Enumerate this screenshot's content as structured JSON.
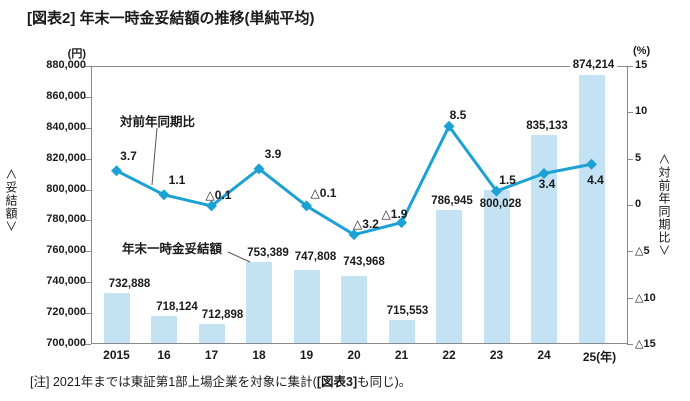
{
  "title": "[図表2] 年末一時金妥結額の推移(単純平均)",
  "footnote": {
    "prefix": "[注] 2021年までは東証第1部上場企業を対象に集計(",
    "bold": "[図表3]",
    "suffix": "も同じ)。"
  },
  "chart_data": {
    "type": "combo-bar-line",
    "title": "[図表2] 年末一時金妥結額の推移(単純平均)",
    "grid": false,
    "legend_position": "annotations-with-leader-lines",
    "categories": [
      "2015",
      "16",
      "17",
      "18",
      "19",
      "20",
      "21",
      "22",
      "23",
      "24",
      "25"
    ],
    "x_unit_suffix": "(年)",
    "bar_series": {
      "name": "年末一時金妥結額",
      "axis": "left",
      "values": [
        732888,
        718124,
        712898,
        753389,
        747808,
        743968,
        715553,
        786945,
        800028,
        835133,
        874214
      ],
      "labels": [
        "732,888",
        "718,124",
        "712,898",
        "753,389",
        "747,808",
        "743,968",
        "715,553",
        "786,945",
        "800,028",
        "835,133",
        "874,214"
      ]
    },
    "line_series": {
      "name": "対前年同期比",
      "axis": "right",
      "values": [
        3.7,
        1.1,
        -0.1,
        3.9,
        -0.1,
        -3.2,
        -1.9,
        8.5,
        1.5,
        3.4,
        4.4
      ],
      "labels": [
        "3.7",
        "1.1",
        "△0.1",
        "3.9",
        "△0.1",
        "△3.2",
        "△1.9",
        "8.5",
        "1.5",
        "3.4",
        "4.4"
      ]
    },
    "left_axis": {
      "unit": "(円)",
      "title": "＜妥結額＞",
      "min": 700000,
      "max": 880000,
      "step": 20000,
      "tick_labels": [
        "880,000",
        "860,000",
        "840,000",
        "820,000",
        "800,000",
        "780,000",
        "760,000",
        "740,000",
        "720,000",
        "700,000"
      ]
    },
    "right_axis": {
      "unit": "(%)",
      "title": "＜対前年同期比＞",
      "min": -15,
      "max": 15,
      "step": 5,
      "tick_labels": [
        "15",
        "10",
        "5",
        "0",
        "△5",
        "△10",
        "△15"
      ]
    },
    "colors": {
      "bar": "#c3e2f4",
      "line": "#1ba1d3",
      "axis": "#8a8a8a",
      "text": "#1a1a1a"
    }
  }
}
